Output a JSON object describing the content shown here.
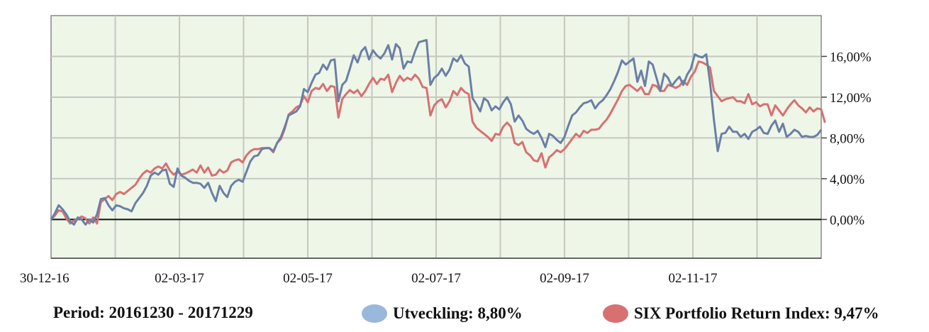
{
  "chart_data": {
    "type": "line",
    "x_tick_labels": [
      "30-12-16",
      "02-03-17",
      "02-05-17",
      "02-07-17",
      "02-09-17",
      "02-11-17"
    ],
    "y_tick_labels": [
      "0,00%",
      "4,00%",
      "8,00%",
      "12,00%",
      "16,00%"
    ],
    "ylim": [
      -3.8,
      20
    ],
    "y_ticks": [
      0,
      4,
      8,
      12,
      16
    ],
    "grid": true,
    "background": "#eef6e8",
    "series": [
      {
        "name": "Utveckling: 8,80%",
        "color": "#6a7fa6",
        "legend_color": "#9ab8dc",
        "values": [
          0,
          0.6,
          1.4,
          1,
          0.5,
          -0.2,
          -0.5,
          0.2,
          0,
          -0.5,
          0,
          -0.3,
          0.5,
          2,
          2.1,
          1.4,
          0.9,
          1.4,
          1.3,
          1.1,
          1,
          0.8,
          1.6,
          2.1,
          2.6,
          3.3,
          4.3,
          4.6,
          4.4,
          4.8,
          4.9,
          3.5,
          3.2,
          5,
          4.3,
          4.1,
          3.8,
          3.6,
          3.6,
          3.5,
          3.1,
          3.6,
          2.6,
          1.8,
          3.3,
          2.6,
          2.2,
          3.3,
          3.7,
          3.9,
          3.7,
          4.7,
          5.7,
          6.2,
          6.3,
          6.9,
          7,
          7,
          6.7,
          7.5,
          8.1,
          9.1,
          10.2,
          10.4,
          10.6,
          11.1,
          12.8,
          12.5,
          13.4,
          14.2,
          14.4,
          15.2,
          14.7,
          15.6,
          15.7,
          11.6,
          13.2,
          13.6,
          14.8,
          16.1,
          15.4,
          16.5,
          16.9,
          15.7,
          16.6,
          16.1,
          15.8,
          16.3,
          17.1,
          15.7,
          17.2,
          16.8,
          14.8,
          15.5,
          15.4,
          16.5,
          17.4,
          17.5,
          17.6,
          13.2,
          13.9,
          14.2,
          14.8,
          14.1,
          14.7,
          15.8,
          15.5,
          16.1,
          15.3,
          15,
          11.9,
          11.3,
          10.6,
          11.9,
          11.6,
          10.7,
          11.1,
          10.8,
          11.5,
          12,
          11.3,
          9.6,
          10.2,
          9.7,
          8.9,
          8.6,
          8.4,
          8.7,
          8,
          7.1,
          8.4,
          8.2,
          7.8,
          7.5,
          8.1,
          9.2,
          10.2,
          10.5,
          11,
          11.4,
          11.5,
          11.7,
          10.9,
          11.4,
          11.7,
          12.2,
          12.8,
          13.6,
          14.5,
          15.6,
          15.2,
          15.5,
          15.8,
          13.5,
          14.6,
          13.1,
          15.5,
          15.2,
          13.9,
          12.6,
          14.3,
          13.9,
          13.1,
          13.6,
          14,
          13.2,
          14.2,
          14.8,
          16.2,
          16,
          15.9,
          16.2,
          13.4,
          9.8,
          6.7,
          8.4,
          8.5,
          9.1,
          8.6,
          8.6,
          8.1,
          8.4,
          7.9,
          8.6,
          8.8,
          9.1,
          8.5,
          8.4,
          9.2,
          9.7,
          8.6,
          9.4,
          8.1,
          8.4,
          8.8,
          8.6,
          8.1,
          8.2,
          8.1,
          8.1,
          8.3,
          8.8
        ]
      },
      {
        "name": "SIX Portfolio Return Index: 9,47%",
        "color": "#d87070",
        "legend_color": "#d87070",
        "values": [
          0,
          0.4,
          0.9,
          0.8,
          0.1,
          -0.4,
          -0.1,
          0,
          0.3,
          0.1,
          -0.4,
          0.2,
          -0.4,
          1.7,
          2,
          2.3,
          1.9,
          2.5,
          2.7,
          2.5,
          2.8,
          3.1,
          3.4,
          4,
          4.5,
          4.8,
          4.6,
          5,
          5.2,
          5,
          5.5,
          4.8,
          4.4,
          4.7,
          4.4,
          4.5,
          4.7,
          4.9,
          4.6,
          5.3,
          4.6,
          5.1,
          4.3,
          4.4,
          4.9,
          4.6,
          4.8,
          5.6,
          5.8,
          5.9,
          5.6,
          6.3,
          6.7,
          6.9,
          6.9,
          7,
          7,
          7,
          6.6,
          7.5,
          7.9,
          8.9,
          10.3,
          10.6,
          11,
          11.2,
          12.1,
          11.5,
          12.6,
          12.9,
          12.8,
          13.3,
          12.6,
          13.1,
          13,
          10,
          11.8,
          12.3,
          12.7,
          12.4,
          12.7,
          12.1,
          12.6,
          13.3,
          13.9,
          13.3,
          13.8,
          13.7,
          14.2,
          12.5,
          13.4,
          14.1,
          13.6,
          13.9,
          13.7,
          14.2,
          13.8,
          13,
          12.9,
          10.2,
          11.2,
          11.6,
          11.8,
          11,
          11.6,
          12.6,
          12.2,
          12.9,
          12.5,
          12.3,
          9.6,
          9,
          8.7,
          8.4,
          8.1,
          7.7,
          8.4,
          8.3,
          9.1,
          9.5,
          9.1,
          7.5,
          7.3,
          7.6,
          6.6,
          6.3,
          5.8,
          5.7,
          6.5,
          5.1,
          6.1,
          6.4,
          6.8,
          6.6,
          6.9,
          7.4,
          7.9,
          8.4,
          8.1,
          8.7,
          8.5,
          8.8,
          8.8,
          8.9,
          9.4,
          9.8,
          10.4,
          11.1,
          11.8,
          12.6,
          13.1,
          13.2,
          12.9,
          12.6,
          13,
          12.3,
          12.3,
          13.2,
          13.1,
          12.6,
          12.6,
          13.2,
          13.1,
          12.9,
          13.1,
          13.6,
          13.2,
          14,
          14.5,
          15.5,
          15.4,
          15.2,
          14.9,
          12.6,
          12.1,
          11.6,
          11.8,
          11.9,
          12,
          11.6,
          11.6,
          11.4,
          12.3,
          11.3,
          11.5,
          11.1,
          11.3,
          11.3,
          10.2,
          11.2,
          10.7,
          10.2,
          10.8,
          11.3,
          11.7,
          11.2,
          10.9,
          10.5,
          11,
          10.6,
          10.9,
          10.8,
          9.5
        ]
      }
    ]
  },
  "footer": {
    "period": "Period: 20161230 - 20171229"
  }
}
